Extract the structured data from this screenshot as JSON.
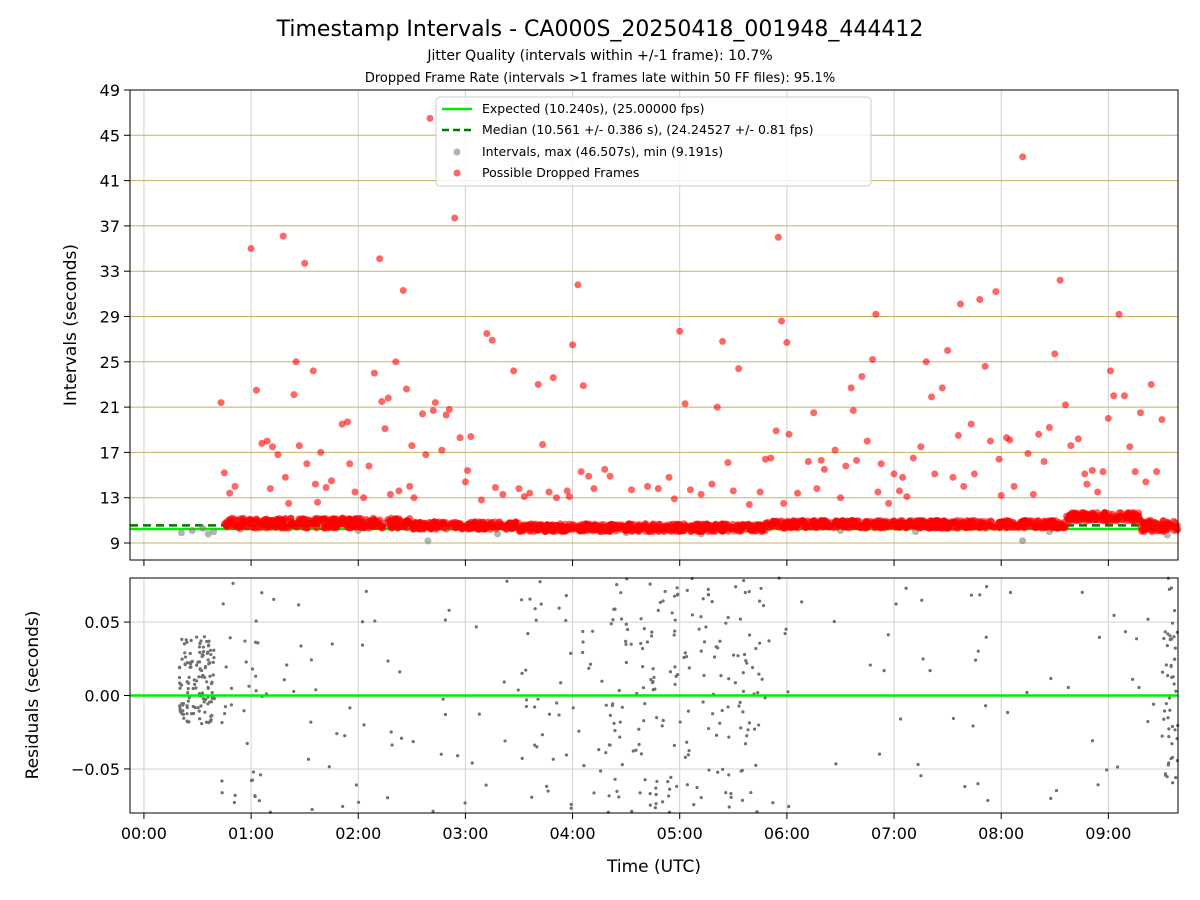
{
  "title": "Timestamp Intervals - CA000S_20250418_001948_444412",
  "subtitle1": "Jitter Quality (intervals within +/-1 frame): 10.7%",
  "subtitle2": "Dropped Frame Rate (intervals >1 frames late within 50 FF files): 95.1%",
  "colors": {
    "expected": "#00ee00",
    "median": "#007700",
    "intervals": "#808080",
    "dropped": "#ff0000",
    "hgrid": "#c8b060",
    "vgrid": "#d0d0d0",
    "residual": "#707070"
  },
  "chart_data": [
    {
      "type": "scatter",
      "xlabel": "",
      "ylabel": "Intervals (seconds)",
      "x_unit": "hours since 00:00 UTC",
      "xlim": [
        -0.13,
        9.65
      ],
      "ylim": [
        7.5,
        49
      ],
      "yticks": [
        9,
        13,
        17,
        21,
        25,
        29,
        33,
        37,
        41,
        45,
        49
      ],
      "grid": true,
      "legend_position": "top-center",
      "lines": [
        {
          "name": "Expected (10.240s), (25.00000 fps)",
          "y": 10.24,
          "style": "solid"
        },
        {
          "name": "Median (10.561 +/- 0.386 s), (24.24527 +/- 0.81 fps)",
          "y": 10.561,
          "style": "dashed"
        }
      ],
      "series": [
        {
          "name": "Intervals, max (46.507s), min (9.191s)",
          "marker": "circle",
          "points": [
            [
              0.35,
              9.9
            ],
            [
              0.45,
              10.1
            ],
            [
              0.55,
              10.3
            ],
            [
              0.6,
              9.8
            ],
            [
              0.65,
              10.0
            ],
            [
              0.9,
              10.2
            ],
            [
              1.5,
              10.4
            ],
            [
              2.0,
              10.1
            ],
            [
              2.65,
              9.19
            ],
            [
              3.3,
              9.8
            ],
            [
              4.5,
              9.9
            ],
            [
              5.2,
              9.8
            ],
            [
              6.5,
              10.1
            ],
            [
              7.2,
              10.0
            ],
            [
              8.2,
              9.2
            ],
            [
              8.45,
              10.0
            ],
            [
              9.5,
              10.1
            ],
            [
              9.55,
              9.7
            ]
          ]
        },
        {
          "name": "Possible Dropped Frames",
          "marker": "circle",
          "band": [
            {
              "x0": 0.75,
              "x1": 2.5,
              "y_low": 10.3,
              "y_high": 11.2
            },
            {
              "x0": 2.5,
              "x1": 3.5,
              "y_low": 10.2,
              "y_high": 10.9
            },
            {
              "x0": 3.5,
              "x1": 5.8,
              "y_low": 10.0,
              "y_high": 10.7
            },
            {
              "x0": 5.8,
              "x1": 8.6,
              "y_low": 10.3,
              "y_high": 11.0
            },
            {
              "x0": 8.6,
              "x1": 9.3,
              "y_low": 10.9,
              "y_high": 11.7
            },
            {
              "x0": 9.3,
              "x1": 9.65,
              "y_low": 10.0,
              "y_high": 11.0
            }
          ],
          "points": [
            [
              0.72,
              21.4
            ],
            [
              0.75,
              15.2
            ],
            [
              0.8,
              13.4
            ],
            [
              0.85,
              14.0
            ],
            [
              1.0,
              35.0
            ],
            [
              1.05,
              22.5
            ],
            [
              1.1,
              17.8
            ],
            [
              1.15,
              18.0
            ],
            [
              1.18,
              13.8
            ],
            [
              1.2,
              17.5
            ],
            [
              1.25,
              16.8
            ],
            [
              1.3,
              36.1
            ],
            [
              1.32,
              14.8
            ],
            [
              1.35,
              12.5
            ],
            [
              1.4,
              22.1
            ],
            [
              1.42,
              25.0
            ],
            [
              1.45,
              17.6
            ],
            [
              1.5,
              33.7
            ],
            [
              1.52,
              16.0
            ],
            [
              1.58,
              24.2
            ],
            [
              1.6,
              14.2
            ],
            [
              1.62,
              12.6
            ],
            [
              1.65,
              17.0
            ],
            [
              1.7,
              13.9
            ],
            [
              1.75,
              14.5
            ],
            [
              1.85,
              19.5
            ],
            [
              1.9,
              19.7
            ],
            [
              1.92,
              16.0
            ],
            [
              1.97,
              13.5
            ],
            [
              2.05,
              13.0
            ],
            [
              2.1,
              15.8
            ],
            [
              2.15,
              24.0
            ],
            [
              2.2,
              34.1
            ],
            [
              2.22,
              21.5
            ],
            [
              2.25,
              19.1
            ],
            [
              2.28,
              21.8
            ],
            [
              2.3,
              13.3
            ],
            [
              2.35,
              25.0
            ],
            [
              2.38,
              13.6
            ],
            [
              2.42,
              31.3
            ],
            [
              2.45,
              22.6
            ],
            [
              2.48,
              14.0
            ],
            [
              2.5,
              17.6
            ],
            [
              2.52,
              13.0
            ],
            [
              2.6,
              20.4
            ],
            [
              2.63,
              16.8
            ],
            [
              2.67,
              46.5
            ],
            [
              2.7,
              20.7
            ],
            [
              2.72,
              21.4
            ],
            [
              2.78,
              17.2
            ],
            [
              2.82,
              20.3
            ],
            [
              2.85,
              20.8
            ],
            [
              2.9,
              37.7
            ],
            [
              2.95,
              18.3
            ],
            [
              3.0,
              14.4
            ],
            [
              3.02,
              15.4
            ],
            [
              3.05,
              18.4
            ],
            [
              3.15,
              12.8
            ],
            [
              3.2,
              27.5
            ],
            [
              3.25,
              26.9
            ],
            [
              3.28,
              13.9
            ],
            [
              3.35,
              13.3
            ],
            [
              3.45,
              24.2
            ],
            [
              3.5,
              13.8
            ],
            [
              3.55,
              13.1
            ],
            [
              3.6,
              13.4
            ],
            [
              3.68,
              23.0
            ],
            [
              3.72,
              17.7
            ],
            [
              3.78,
              13.5
            ],
            [
              3.82,
              23.6
            ],
            [
              3.85,
              13.0
            ],
            [
              3.95,
              13.6
            ],
            [
              3.97,
              13.1
            ],
            [
              4.0,
              26.5
            ],
            [
              4.05,
              31.8
            ],
            [
              4.08,
              15.3
            ],
            [
              4.1,
              22.9
            ],
            [
              4.15,
              14.9
            ],
            [
              4.2,
              13.8
            ],
            [
              4.3,
              15.5
            ],
            [
              4.35,
              14.9
            ],
            [
              4.55,
              13.7
            ],
            [
              4.7,
              14.0
            ],
            [
              4.8,
              13.8
            ],
            [
              4.9,
              14.8
            ],
            [
              4.95,
              12.9
            ],
            [
              5.0,
              27.7
            ],
            [
              5.05,
              21.3
            ],
            [
              5.1,
              13.7
            ],
            [
              5.2,
              13.3
            ],
            [
              5.3,
              14.2
            ],
            [
              5.35,
              21.0
            ],
            [
              5.4,
              26.8
            ],
            [
              5.45,
              16.1
            ],
            [
              5.5,
              13.6
            ],
            [
              5.55,
              24.4
            ],
            [
              5.65,
              12.4
            ],
            [
              5.75,
              13.5
            ],
            [
              5.8,
              16.4
            ],
            [
              5.85,
              16.5
            ],
            [
              5.9,
              18.9
            ],
            [
              5.92,
              36.0
            ],
            [
              5.95,
              28.6
            ],
            [
              5.97,
              12.5
            ],
            [
              6.0,
              26.7
            ],
            [
              6.02,
              18.6
            ],
            [
              6.1,
              13.4
            ],
            [
              6.2,
              16.2
            ],
            [
              6.25,
              20.5
            ],
            [
              6.28,
              13.8
            ],
            [
              6.32,
              16.3
            ],
            [
              6.35,
              15.5
            ],
            [
              6.45,
              17.2
            ],
            [
              6.5,
              13.0
            ],
            [
              6.55,
              15.8
            ],
            [
              6.6,
              22.7
            ],
            [
              6.62,
              20.7
            ],
            [
              6.65,
              16.3
            ],
            [
              6.7,
              23.7
            ],
            [
              6.75,
              18.0
            ],
            [
              6.8,
              25.2
            ],
            [
              6.83,
              29.2
            ],
            [
              6.85,
              13.5
            ],
            [
              6.88,
              16.0
            ],
            [
              6.95,
              12.5
            ],
            [
              7.0,
              15.1
            ],
            [
              7.05,
              13.6
            ],
            [
              7.08,
              14.8
            ],
            [
              7.12,
              13.1
            ],
            [
              7.18,
              16.5
            ],
            [
              7.25,
              17.5
            ],
            [
              7.3,
              25.0
            ],
            [
              7.35,
              21.9
            ],
            [
              7.38,
              15.1
            ],
            [
              7.45,
              22.7
            ],
            [
              7.5,
              26.0
            ],
            [
              7.55,
              14.8
            ],
            [
              7.6,
              18.5
            ],
            [
              7.62,
              30.1
            ],
            [
              7.65,
              14.0
            ],
            [
              7.72,
              19.5
            ],
            [
              7.75,
              15.1
            ],
            [
              7.8,
              30.5
            ],
            [
              7.85,
              24.6
            ],
            [
              7.9,
              18.0
            ],
            [
              7.95,
              31.2
            ],
            [
              7.98,
              16.4
            ],
            [
              8.0,
              13.2
            ],
            [
              8.05,
              18.3
            ],
            [
              8.08,
              18.1
            ],
            [
              8.12,
              14.0
            ],
            [
              8.2,
              43.1
            ],
            [
              8.25,
              16.9
            ],
            [
              8.3,
              13.3
            ],
            [
              8.35,
              18.6
            ],
            [
              8.4,
              16.2
            ],
            [
              8.45,
              19.2
            ],
            [
              8.5,
              25.7
            ],
            [
              8.55,
              32.2
            ],
            [
              8.6,
              21.2
            ],
            [
              8.65,
              17.6
            ],
            [
              8.72,
              18.2
            ],
            [
              8.78,
              15.1
            ],
            [
              8.8,
              14.2
            ],
            [
              8.85,
              15.4
            ],
            [
              8.9,
              13.5
            ],
            [
              8.95,
              15.3
            ],
            [
              9.0,
              20.0
            ],
            [
              9.02,
              24.2
            ],
            [
              9.05,
              22.0
            ],
            [
              9.1,
              29.2
            ],
            [
              9.15,
              22.0
            ],
            [
              9.2,
              17.5
            ],
            [
              9.25,
              15.3
            ],
            [
              9.3,
              20.5
            ],
            [
              9.35,
              14.4
            ],
            [
              9.4,
              23.0
            ],
            [
              9.45,
              15.3
            ],
            [
              9.5,
              19.9
            ]
          ]
        }
      ]
    },
    {
      "type": "scatter",
      "xlabel": "Time (UTC)",
      "ylabel": "Residuals (seconds)",
      "x_unit": "hours since 00:00 UTC",
      "xlim": [
        -0.13,
        9.65
      ],
      "ylim": [
        -0.08,
        0.08
      ],
      "yticks": [
        -0.05,
        0.0,
        0.05
      ],
      "ytick_labels": [
        "−0.05",
        "0.00",
        "0.05"
      ],
      "xticks": [
        0,
        1,
        2,
        3,
        4,
        5,
        6,
        7,
        8,
        9
      ],
      "xtick_labels": [
        "00:00",
        "01:00",
        "02:00",
        "03:00",
        "04:00",
        "05:00",
        "06:00",
        "07:00",
        "08:00",
        "09:00"
      ],
      "grid": true,
      "reference_line": 0.0,
      "series": [
        {
          "name": "",
          "clusters": [
            {
              "x0": 0.33,
              "x1": 0.65,
              "y_low": -0.02,
              "y_high": 0.04,
              "count": 130
            },
            {
              "x0": 0.65,
              "x1": 1.1,
              "y_low": -0.08,
              "y_high": 0.08,
              "count": 35
            },
            {
              "x0": 1.1,
              "x1": 3.5,
              "y_low": -0.08,
              "y_high": 0.08,
              "count": 50
            },
            {
              "x0": 3.5,
              "x1": 4.3,
              "y_low": -0.08,
              "y_high": 0.08,
              "count": 45
            },
            {
              "x0": 4.3,
              "x1": 5.8,
              "y_low": -0.08,
              "y_high": 0.08,
              "count": 190
            },
            {
              "x0": 5.8,
              "x1": 9.5,
              "y_low": -0.08,
              "y_high": 0.08,
              "count": 55
            },
            {
              "x0": 9.5,
              "x1": 9.65,
              "y_low": -0.06,
              "y_high": 0.08,
              "count": 50
            }
          ]
        }
      ]
    }
  ]
}
